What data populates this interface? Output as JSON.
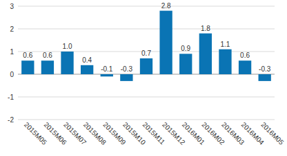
{
  "chart_data": {
    "type": "bar",
    "categories": [
      "2015M05",
      "2015M06",
      "2015M07",
      "2015M08",
      "2015M09",
      "2015M10",
      "2015M11",
      "2015M12",
      "2016M01",
      "2016M02",
      "2016M03",
      "2016M04",
      "2016M05"
    ],
    "values": [
      0.6,
      0.6,
      1.0,
      0.4,
      -0.1,
      -0.3,
      0.7,
      2.8,
      0.9,
      1.8,
      1.1,
      0.6,
      -0.3
    ],
    "value_labels": [
      "0.6",
      "0.6",
      "1.0",
      "0.4",
      "-0.1",
      "-0.3",
      "0.7",
      "2.8",
      "0.9",
      "1.8",
      "1.1",
      "0.6",
      "-0.3"
    ],
    "color": "#0a74b4",
    "ylim": [
      -2,
      3
    ],
    "yticks": [
      -2,
      -1,
      0,
      1,
      2,
      3
    ],
    "grid": true,
    "data_labels": true
  }
}
